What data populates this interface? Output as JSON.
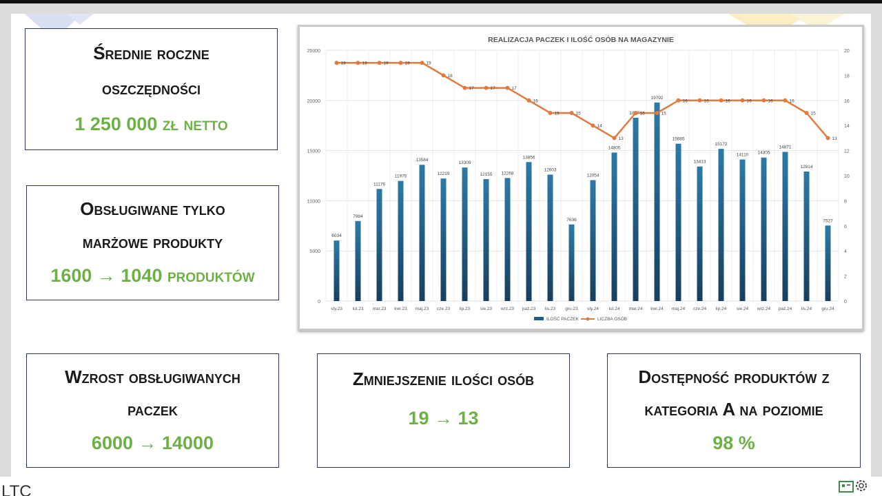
{
  "cards": [
    {
      "head1": "Średnie roczne",
      "head2": "oszczędności",
      "value": "1 250 000 zł netto"
    },
    {
      "head1": "Obsługiwane tylko",
      "head2": "marżowe produkty",
      "value": "1600 → 1040 produktów"
    },
    {
      "head1": "Wzrost obsługiwanych",
      "head2": "paczek",
      "value": "6000 → 14000"
    },
    {
      "head1": "Zmniejszenie ilości osób",
      "value": "19 → 13"
    },
    {
      "head1": "Dostępność produktów z",
      "head2": "kategoria A na poziomie",
      "value": "98 %"
    }
  ],
  "footer": {
    "ltc": "LTC"
  },
  "colors": {
    "accent_green": "#6db146",
    "bar": "#1f5f86",
    "line": "#e07a3f",
    "card_border": "#2b3658"
  },
  "chart_data": {
    "type": "bar+line",
    "title": "REALIZACJA PACZEK I ILOŚĆ OSÓB NA MAGAZYNIE",
    "categories": [
      "sty.23",
      "lut.23",
      "mar.23",
      "kwi.23",
      "maj.23",
      "cze.23",
      "lip.23",
      "sie.23",
      "wrz.23",
      "paź.23",
      "lis.23",
      "gru.23",
      "sty.24",
      "lut.24",
      "mar.24",
      "kwi.24",
      "maj.24",
      "cze.24",
      "lip.24",
      "sie.24",
      "wrz.24",
      "paź.24",
      "lis.24",
      "gru.24"
    ],
    "series": [
      {
        "name": "ILOŚĆ PACZEK",
        "type": "bar",
        "axis": "left",
        "values": [
          6034,
          7984,
          11176,
          11975,
          13584,
          12219,
          13309,
          12155,
          12268,
          13856,
          12603,
          7636,
          12054,
          14805,
          18274,
          19792,
          15685,
          13413,
          15172,
          14110,
          14305,
          14871,
          12914,
          7527
        ]
      },
      {
        "name": "LICZBA OSÓB",
        "type": "line",
        "axis": "right",
        "values": [
          19,
          19,
          19,
          19,
          19,
          18,
          17,
          17,
          17,
          16,
          15,
          15,
          14,
          13,
          15,
          15,
          16,
          16,
          16,
          16,
          16,
          16,
          15,
          13
        ]
      }
    ],
    "y_left": {
      "min": 0,
      "max": 25000,
      "ticks": [
        0,
        5000,
        10000,
        15000,
        20000,
        25000
      ]
    },
    "y_right": {
      "min": 0,
      "max": 20,
      "ticks": [
        0,
        2,
        4,
        6,
        8,
        10,
        12,
        14,
        16,
        18,
        20
      ]
    },
    "grid": true,
    "legend": "bottom"
  }
}
